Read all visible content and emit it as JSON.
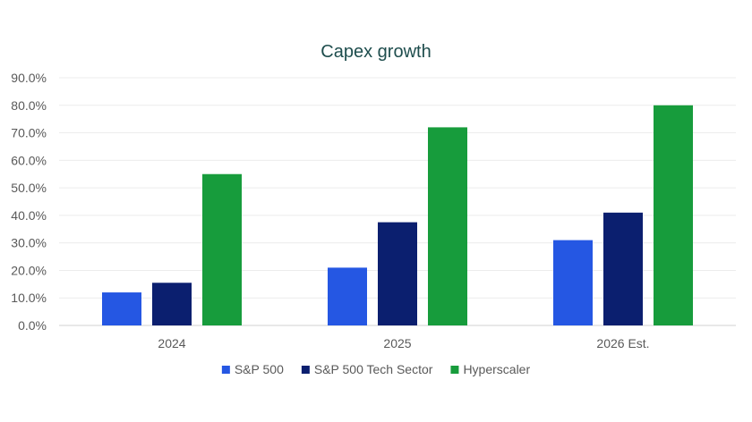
{
  "chart_data": {
    "type": "bar",
    "title": "Capex growth",
    "xlabel": "",
    "ylabel": "",
    "categories": [
      "2024",
      "2025",
      "2026 Est."
    ],
    "series": [
      {
        "name": "S&P 500",
        "values": [
          12,
          21,
          31
        ],
        "color": "#2557e3"
      },
      {
        "name": "S&P 500 Tech Sector",
        "values": [
          15.5,
          37.5,
          41
        ],
        "color": "#0b1f6f"
      },
      {
        "name": "Hyperscaler",
        "values": [
          55,
          72,
          80
        ],
        "color": "#179c3c"
      }
    ],
    "ylim": [
      0,
      90
    ],
    "yticks": [
      0,
      10,
      20,
      30,
      40,
      50,
      60,
      70,
      80,
      90
    ],
    "ytick_labels": [
      "0.0%",
      "10.0%",
      "20.0%",
      "30.0%",
      "40.0%",
      "50.0%",
      "60.0%",
      "70.0%",
      "80.0%",
      "90.0%"
    ],
    "grid": true,
    "legend_position": "bottom"
  }
}
